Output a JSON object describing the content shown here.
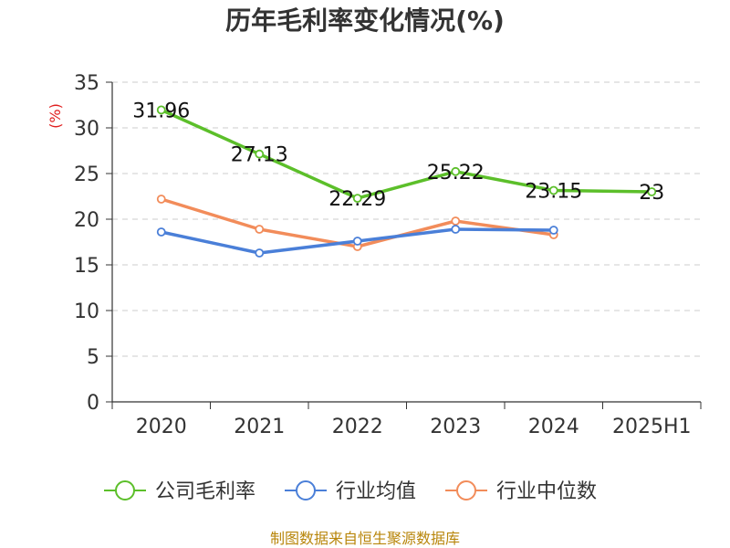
{
  "chart_data": {
    "type": "line",
    "title": "历年毛利率变化情况(%)",
    "ylabel": "(%)",
    "xlabel": "",
    "categories": [
      "2020",
      "2021",
      "2022",
      "2023",
      "2024",
      "2025H1"
    ],
    "ylim": [
      0,
      35
    ],
    "yticks": [
      0,
      5,
      10,
      15,
      20,
      25,
      30,
      35
    ],
    "grid": "horizontal dashed",
    "legend_position": "bottom",
    "series": [
      {
        "name": "公司毛利率",
        "color": "#5cbf2a",
        "values": [
          31.96,
          27.13,
          22.29,
          25.22,
          23.15,
          23
        ],
        "labels": [
          "31.96",
          "27.13",
          "22.29",
          "25.22",
          "23.15",
          "23"
        ]
      },
      {
        "name": "行业均值",
        "color": "#4a7fd8",
        "values": [
          18.6,
          16.3,
          17.6,
          18.9,
          18.8,
          null
        ]
      },
      {
        "name": "行业中位数",
        "color": "#f28c5a",
        "values": [
          22.2,
          18.9,
          17.0,
          19.8,
          18.3,
          null
        ]
      }
    ]
  },
  "footer": {
    "source": "制图数据来自恒生聚源数据库"
  }
}
